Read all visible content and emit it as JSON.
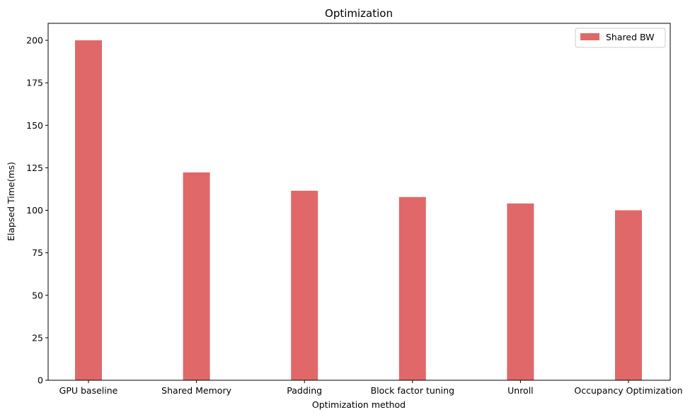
{
  "chart_data": {
    "type": "bar",
    "title": "Optimization",
    "xlabel": "Optimization method",
    "ylabel": "Elapsed Time(ms)",
    "categories": [
      "GPU baseline",
      "Shared Memory",
      "Padding",
      "Block factor tuning",
      "Unroll",
      "Occupancy Optimization"
    ],
    "series": [
      {
        "name": "Shared BW",
        "color": "#e16868",
        "values": [
          200,
          122.3,
          111.5,
          107.8,
          104.0,
          100.0
        ]
      }
    ],
    "ylim": [
      0,
      210
    ],
    "yticks": [
      "0",
      "25",
      "50",
      "75",
      "100",
      "125",
      "150",
      "175",
      "200"
    ],
    "grid": false,
    "legend_position": "top-right"
  }
}
